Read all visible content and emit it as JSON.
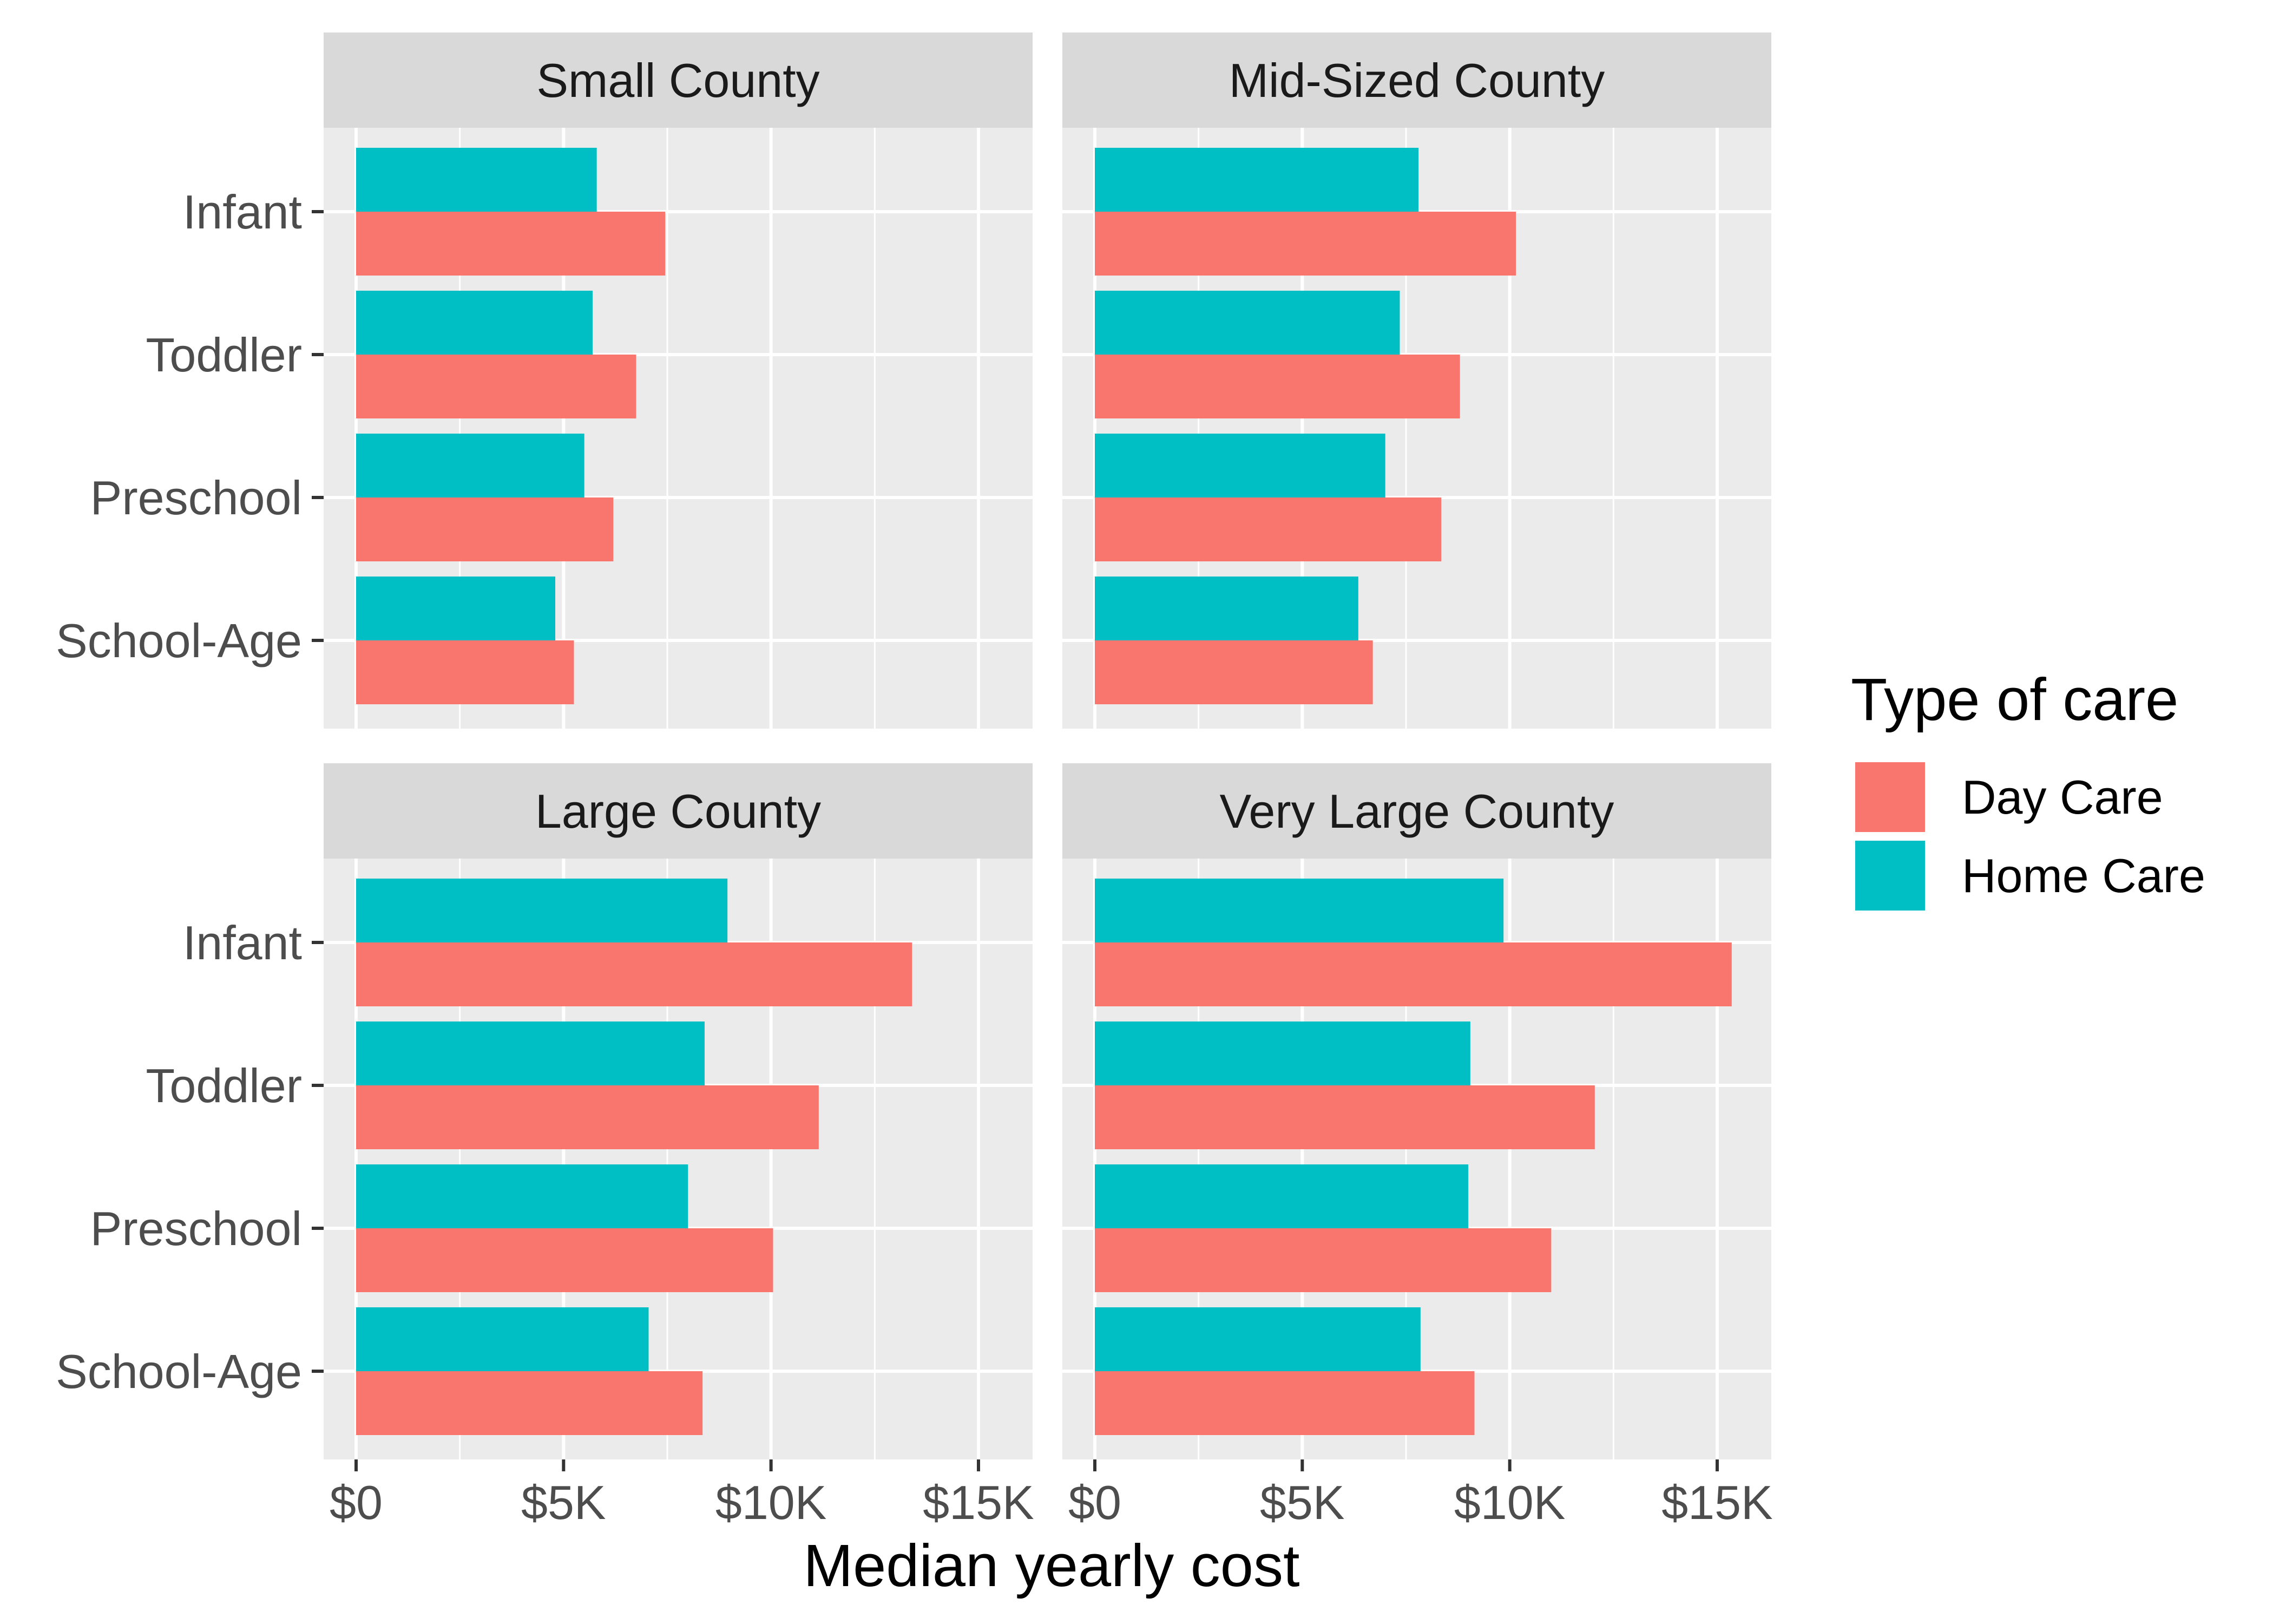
{
  "chart_data": {
    "type": "bar",
    "orientation": "horizontal",
    "xlabel": "Median yearly cost",
    "ylabel": "",
    "xlim": [
      0,
      16000
    ],
    "x_ticks": [
      {
        "value": 0,
        "label": "$0"
      },
      {
        "value": 5000,
        "label": "$5K"
      },
      {
        "value": 10000,
        "label": "$10K"
      },
      {
        "value": 15000,
        "label": "$15K"
      }
    ],
    "categories": [
      "Infant",
      "Toddler",
      "Preschool",
      "School-Age"
    ],
    "legend": {
      "title": "Type of care",
      "placement": "right",
      "entries": [
        {
          "name": "Day Care",
          "color": "#F8766D"
        },
        {
          "name": "Home Care",
          "color": "#00BFC4"
        }
      ]
    },
    "grid": true,
    "panels": [
      {
        "title": "Small County",
        "series": [
          {
            "name": "Day Care",
            "values": [
              7450,
              6750,
              6200,
              5250
            ]
          },
          {
            "name": "Home Care",
            "values": [
              5800,
              5700,
              5500,
              4800
            ]
          }
        ]
      },
      {
        "title": "Mid-Sized County",
        "series": [
          {
            "name": "Day Care",
            "values": [
              10150,
              8800,
              8350,
              6700
            ]
          },
          {
            "name": "Home Care",
            "values": [
              7800,
              7350,
              7000,
              6350
            ]
          }
        ]
      },
      {
        "title": "Large County",
        "series": [
          {
            "name": "Day Care",
            "values": [
              13400,
              11150,
              10050,
              8350
            ]
          },
          {
            "name": "Home Care",
            "values": [
              8950,
              8400,
              8000,
              7050
            ]
          }
        ]
      },
      {
        "title": "Very Large County",
        "series": [
          {
            "name": "Day Care",
            "values": [
              15350,
              12050,
              11000,
              9150
            ]
          },
          {
            "name": "Home Care",
            "values": [
              9850,
              9050,
              9000,
              7850
            ]
          }
        ]
      }
    ]
  }
}
